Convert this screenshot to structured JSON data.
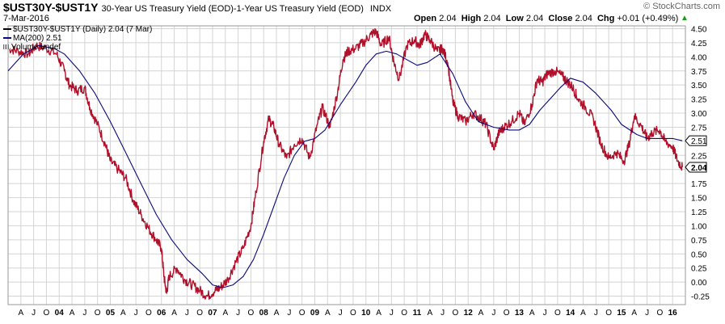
{
  "header": {
    "symbol": "$UST30Y-$UST1Y",
    "description": "30-Year US Treasury Yield (EOD)-1-Year US Treasury Yield (EOD)",
    "exchange": "INDX",
    "date": "7-Mar-2016",
    "logo": "© StockCharts.com",
    "open_label": "Open",
    "open": "2.04",
    "high_label": "High",
    "high": "2.04",
    "low_label": "Low",
    "low": "2.04",
    "close_label": "Close",
    "close": "2.04",
    "chg_label": "Chg",
    "chg": "+0.01 (+0.49%)",
    "trend_icon": "up-triangle-icon"
  },
  "legend": {
    "series_label": "$UST30Y-$UST1Y (Daily) 2.04 (7 Mar)",
    "ma_label": "MA(200) 2.51",
    "volume_label": "Volume undef"
  },
  "colors": {
    "price": "#b0102a",
    "ma": "#0a0a7a",
    "grid": "#d4d4d4",
    "tag_bg": "#ffffff"
  },
  "chart_data": {
    "type": "line",
    "grid": true,
    "ylim": [
      -0.4,
      4.55
    ],
    "xlim": [
      2003.0,
      2016.25
    ],
    "yticks": [
      "4.50",
      "4.25",
      "4.00",
      "3.75",
      "3.50",
      "3.25",
      "3.00",
      "2.75",
      "2.50",
      "2.25",
      "2.00",
      "1.75",
      "1.50",
      "1.25",
      "1.00",
      "0.75",
      "0.50",
      "0.25",
      "0.00",
      "-0.25"
    ],
    "yticks_values": [
      4.5,
      4.25,
      4.0,
      3.75,
      3.5,
      3.25,
      3.0,
      2.75,
      2.5,
      2.25,
      2.0,
      1.75,
      1.5,
      1.25,
      1.0,
      0.75,
      0.5,
      0.25,
      0.0,
      -0.25
    ],
    "xticks": [
      {
        "t": 2003.25,
        "label": "A"
      },
      {
        "t": 2003.5,
        "label": "J"
      },
      {
        "t": 2003.75,
        "label": "O"
      },
      {
        "t": 2004.0,
        "label": "04"
      },
      {
        "t": 2004.25,
        "label": "A"
      },
      {
        "t": 2004.5,
        "label": "J"
      },
      {
        "t": 2004.75,
        "label": "O"
      },
      {
        "t": 2005.0,
        "label": "05"
      },
      {
        "t": 2005.25,
        "label": "A"
      },
      {
        "t": 2005.5,
        "label": "J"
      },
      {
        "t": 2005.75,
        "label": "O"
      },
      {
        "t": 2006.0,
        "label": "06"
      },
      {
        "t": 2006.25,
        "label": "A"
      },
      {
        "t": 2006.5,
        "label": "J"
      },
      {
        "t": 2006.75,
        "label": "O"
      },
      {
        "t": 2007.0,
        "label": "07"
      },
      {
        "t": 2007.25,
        "label": "A"
      },
      {
        "t": 2007.5,
        "label": "J"
      },
      {
        "t": 2007.75,
        "label": "O"
      },
      {
        "t": 2008.0,
        "label": "08"
      },
      {
        "t": 2008.25,
        "label": "A"
      },
      {
        "t": 2008.5,
        "label": "J"
      },
      {
        "t": 2008.75,
        "label": "O"
      },
      {
        "t": 2009.0,
        "label": "09"
      },
      {
        "t": 2009.25,
        "label": "A"
      },
      {
        "t": 2009.5,
        "label": "J"
      },
      {
        "t": 2009.75,
        "label": "O"
      },
      {
        "t": 2010.0,
        "label": "10"
      },
      {
        "t": 2010.25,
        "label": "A"
      },
      {
        "t": 2010.5,
        "label": "J"
      },
      {
        "t": 2010.75,
        "label": "O"
      },
      {
        "t": 2011.0,
        "label": "11"
      },
      {
        "t": 2011.25,
        "label": "A"
      },
      {
        "t": 2011.5,
        "label": "J"
      },
      {
        "t": 2011.75,
        "label": "O"
      },
      {
        "t": 2012.0,
        "label": "12"
      },
      {
        "t": 2012.25,
        "label": "A"
      },
      {
        "t": 2012.5,
        "label": "J"
      },
      {
        "t": 2012.75,
        "label": "O"
      },
      {
        "t": 2013.0,
        "label": "13"
      },
      {
        "t": 2013.25,
        "label": "A"
      },
      {
        "t": 2013.5,
        "label": "J"
      },
      {
        "t": 2013.75,
        "label": "O"
      },
      {
        "t": 2014.0,
        "label": "14"
      },
      {
        "t": 2014.25,
        "label": "A"
      },
      {
        "t": 2014.5,
        "label": "J"
      },
      {
        "t": 2014.75,
        "label": "O"
      },
      {
        "t": 2015.0,
        "label": "15"
      },
      {
        "t": 2015.25,
        "label": "A"
      },
      {
        "t": 2015.5,
        "label": "J"
      },
      {
        "t": 2015.75,
        "label": "O"
      },
      {
        "t": 2016.0,
        "label": "16"
      }
    ],
    "series": [
      {
        "name": "$UST30Y-$UST1Y",
        "x": [
          2003.0,
          2003.2,
          2003.4,
          2003.55,
          2003.75,
          2003.95,
          2004.1,
          2004.2,
          2004.35,
          2004.5,
          2004.6,
          2004.75,
          2004.9,
          2005.0,
          2005.15,
          2005.3,
          2005.45,
          2005.6,
          2005.75,
          2005.9,
          2006.0,
          2006.05,
          2006.1,
          2006.15,
          2006.3,
          2006.45,
          2006.6,
          2006.75,
          2006.9,
          2007.05,
          2007.15,
          2007.3,
          2007.45,
          2007.6,
          2007.75,
          2007.85,
          2008.0,
          2008.1,
          2008.2,
          2008.3,
          2008.45,
          2008.6,
          2008.75,
          2008.9,
          2009.05,
          2009.15,
          2009.3,
          2009.45,
          2009.55,
          2009.65,
          2009.8,
          2009.95,
          2010.1,
          2010.2,
          2010.3,
          2010.45,
          2010.55,
          2010.65,
          2010.8,
          2010.95,
          2011.05,
          2011.15,
          2011.25,
          2011.4,
          2011.5,
          2011.6,
          2011.7,
          2011.8,
          2011.95,
          2012.1,
          2012.25,
          2012.35,
          2012.5,
          2012.6,
          2012.7,
          2012.85,
          2013.0,
          2013.1,
          2013.25,
          2013.35,
          2013.45,
          2013.55,
          2013.7,
          2013.85,
          2013.95,
          2014.05,
          2014.15,
          2014.3,
          2014.45,
          2014.6,
          2014.75,
          2014.9,
          2015.05,
          2015.15,
          2015.25,
          2015.4,
          2015.5,
          2015.6,
          2015.75,
          2015.85,
          2016.0,
          2016.1,
          2016.19
        ],
        "y": [
          4.15,
          4.1,
          4.05,
          4.2,
          4.15,
          4.05,
          3.75,
          3.5,
          3.4,
          3.45,
          3.1,
          2.8,
          2.45,
          2.15,
          2.0,
          1.85,
          1.45,
          1.2,
          0.95,
          0.75,
          0.6,
          0.1,
          -0.2,
          0.1,
          0.25,
          0.05,
          -0.05,
          -0.15,
          -0.25,
          -0.15,
          -0.1,
          0.05,
          0.35,
          0.6,
          1.0,
          1.6,
          2.5,
          2.9,
          2.75,
          2.45,
          2.2,
          2.45,
          2.55,
          2.2,
          2.8,
          3.1,
          2.75,
          3.4,
          3.95,
          4.1,
          4.15,
          4.25,
          4.4,
          4.45,
          4.2,
          4.35,
          3.9,
          3.6,
          4.2,
          4.3,
          4.2,
          4.4,
          4.3,
          4.1,
          4.15,
          3.9,
          3.2,
          2.95,
          2.85,
          3.0,
          2.9,
          2.8,
          2.35,
          2.65,
          2.75,
          2.85,
          3.0,
          2.8,
          3.15,
          3.6,
          3.55,
          3.7,
          3.75,
          3.65,
          3.55,
          3.45,
          3.25,
          3.1,
          2.9,
          2.45,
          2.2,
          2.3,
          2.15,
          2.45,
          2.95,
          2.75,
          2.55,
          2.65,
          2.7,
          2.5,
          2.4,
          2.15,
          2.04
        ]
      },
      {
        "name": "MA(200)",
        "x": [
          2003.0,
          2003.3,
          2003.6,
          2003.9,
          2004.1,
          2004.4,
          2004.7,
          2005.0,
          2005.3,
          2005.6,
          2005.9,
          2006.2,
          2006.5,
          2006.8,
          2007.0,
          2007.2,
          2007.4,
          2007.6,
          2007.8,
          2008.0,
          2008.2,
          2008.4,
          2008.6,
          2008.8,
          2009.0,
          2009.2,
          2009.5,
          2009.8,
          2010.0,
          2010.2,
          2010.4,
          2010.6,
          2010.8,
          2011.0,
          2011.2,
          2011.45,
          2011.7,
          2011.95,
          2012.2,
          2012.5,
          2012.8,
          2013.0,
          2013.2,
          2013.4,
          2013.6,
          2013.8,
          2014.0,
          2014.25,
          2014.5,
          2014.8,
          2015.0,
          2015.3,
          2015.5,
          2015.8,
          2016.0,
          2016.19
        ],
        "y": [
          3.75,
          4.05,
          4.2,
          4.15,
          4.05,
          3.75,
          3.35,
          2.85,
          2.3,
          1.75,
          1.2,
          0.75,
          0.4,
          0.15,
          -0.05,
          -0.1,
          -0.05,
          0.1,
          0.4,
          0.85,
          1.35,
          1.85,
          2.25,
          2.5,
          2.55,
          2.7,
          3.15,
          3.55,
          3.85,
          4.05,
          4.1,
          4.05,
          3.95,
          3.85,
          3.9,
          4.05,
          3.7,
          3.2,
          2.85,
          2.75,
          2.7,
          2.7,
          2.8,
          3.05,
          3.25,
          3.45,
          3.62,
          3.55,
          3.35,
          3.05,
          2.8,
          2.62,
          2.55,
          2.55,
          2.55,
          2.51
        ]
      }
    ],
    "tags": [
      {
        "value": 2.51,
        "label": "2.51"
      },
      {
        "value": 2.04,
        "label": "2.04"
      }
    ]
  }
}
